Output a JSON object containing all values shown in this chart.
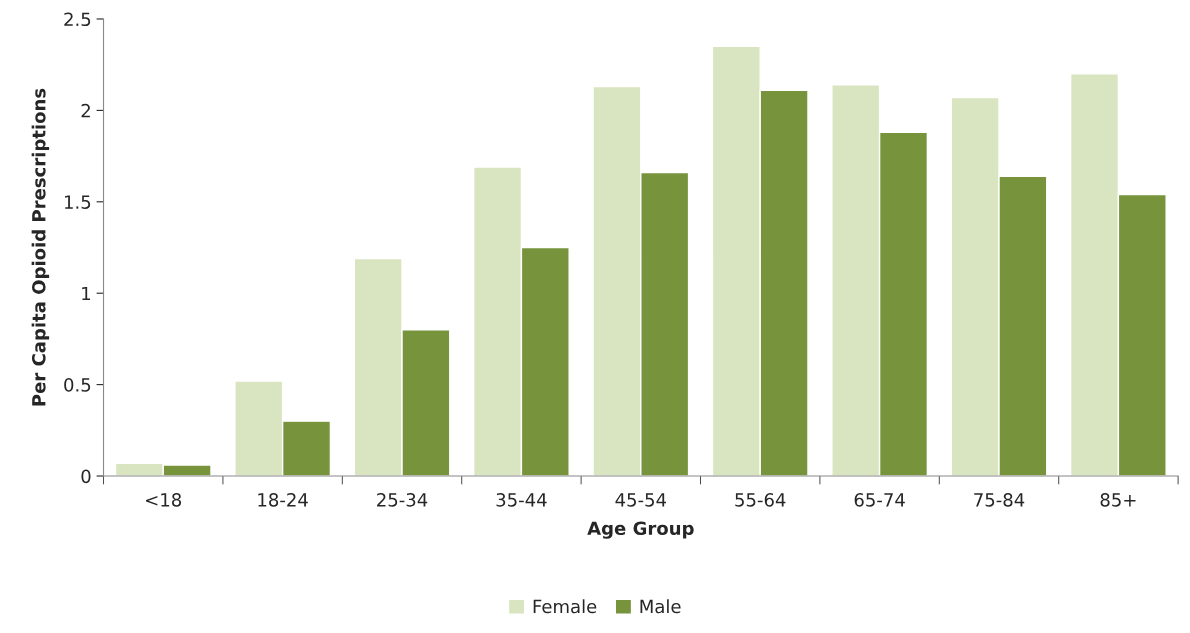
{
  "chart_data": {
    "type": "bar",
    "xlabel": "Age Group",
    "ylabel": "Per Capita Opioid Prescriptions",
    "categories": [
      "<18",
      "18-24",
      "25-34",
      "35-44",
      "45-54",
      "55-64",
      "65-74",
      "75-84",
      "85+"
    ],
    "series": [
      {
        "name": "Female",
        "color": "#d9e5c1",
        "values": [
          0.07,
          0.52,
          1.19,
          1.69,
          2.13,
          2.35,
          2.14,
          2.07,
          2.2
        ]
      },
      {
        "name": "Male",
        "color": "#77933c",
        "values": [
          0.06,
          0.3,
          0.8,
          1.25,
          1.66,
          2.11,
          1.88,
          1.64,
          1.54
        ]
      }
    ],
    "ylim": [
      0,
      2.5
    ],
    "yticks": [
      0,
      0.5,
      1,
      {
        "value": 1.5,
        "label": "1.5"
      },
      2,
      2.5
    ],
    "grid": false,
    "legend": "bottom"
  }
}
